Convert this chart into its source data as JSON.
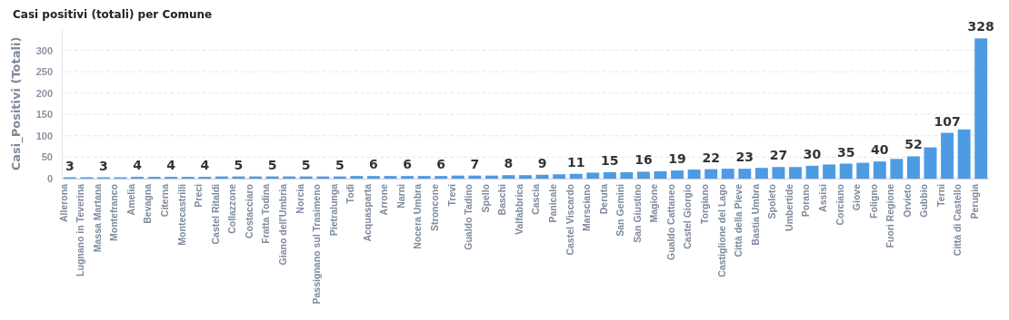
{
  "chart_data": {
    "type": "bar",
    "title": "Casi positivi (totali) per Comune",
    "ylabel": "Casi_Positivi (Totali)",
    "categories": [
      "Allerona",
      "Lugnano in Teverina",
      "Massa Martana",
      "Montefranco",
      "Amelia",
      "Bevagna",
      "Citerna",
      "Montecastrilli",
      "Preci",
      "Castel Ritaldi",
      "Collazzone",
      "Costacciaro",
      "Fratta Todina",
      "Giano dell'Umbria",
      "Norcia",
      "Passignano sul Trasimeno",
      "Pietralunga",
      "Todi",
      "Acquasparta",
      "Arrone",
      "Narni",
      "Nocera Umbra",
      "Stroncone",
      "Trevi",
      "Gualdo Tadino",
      "Spello",
      "Baschi",
      "Valfabbrica",
      "Cascia",
      "Panicale",
      "Castel Viscardo",
      "Marsciano",
      "Deruta",
      "San Gemini",
      "San Giustino",
      "Magione",
      "Gualdo Cattaneo",
      "Castel Giorgio",
      "Torgiano",
      "Castiglione del Lago",
      "Città della Pieve",
      "Bastia Umbra",
      "Spoleto",
      "Umbertide",
      "Porano",
      "Assisi",
      "Corciano",
      "Giove",
      "Foligno",
      "Fuori Regione",
      "Orvieto",
      "Gubbio",
      "Terni",
      "Città di Castello",
      "Perugia"
    ],
    "values": [
      3,
      3,
      3,
      3,
      4,
      4,
      4,
      4,
      4,
      5,
      5,
      5,
      5,
      5,
      5,
      5,
      5,
      6,
      6,
      6,
      6,
      6,
      6,
      7,
      7,
      7,
      8,
      8,
      9,
      10,
      11,
      14,
      15,
      15,
      16,
      17,
      19,
      21,
      22,
      23,
      23,
      25,
      27,
      27,
      30,
      33,
      35,
      37,
      40,
      46,
      52,
      73,
      107,
      115,
      328
    ],
    "value_labels": [
      "3",
      null,
      "3",
      null,
      "4",
      null,
      "4",
      null,
      "4",
      null,
      "5",
      null,
      "5",
      null,
      "5",
      null,
      "5",
      null,
      "6",
      null,
      "6",
      null,
      "6",
      null,
      "7",
      null,
      "8",
      null,
      "9",
      null,
      "11",
      null,
      "15",
      null,
      "16",
      null,
      "19",
      null,
      "22",
      null,
      "23",
      null,
      "27",
      null,
      "30",
      null,
      "35",
      null,
      "40",
      null,
      "52",
      null,
      "107",
      null,
      "328"
    ],
    "color": "#4c9be3",
    "ylim": [
      0,
      350
    ],
    "yticks": [
      0,
      50,
      100,
      150,
      200,
      250,
      300
    ],
    "grid": "y"
  }
}
